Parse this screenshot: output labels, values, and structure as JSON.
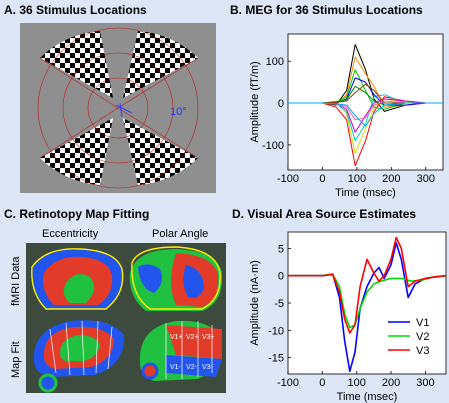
{
  "panels": {
    "a": {
      "title": "A. 36 Stimulus Locations",
      "degree_label": "10°"
    },
    "b": {
      "title": "B. MEG for 36 Stimulus Locations"
    },
    "c": {
      "title": "C. Retinotopy Map Fitting",
      "col_eccentricity": "Eccentricity",
      "col_polar": "Polar Angle",
      "row_fmri": "fMRI Data",
      "row_mapfit": "Map Fit",
      "area_labels": [
        "V1+",
        "V2+",
        "V3+",
        "V1-",
        "V2-",
        "V3-"
      ]
    },
    "d": {
      "title": "D. Visual Area Source Estimates"
    }
  },
  "chart_data": [
    {
      "type": "line",
      "title": "",
      "xlabel": "Time (msec)",
      "ylabel": "Amplitude (fT/m)",
      "xlim": [
        -100,
        350
      ],
      "ylim": [
        -160,
        165
      ],
      "xticks": [
        -100,
        0,
        100,
        200,
        300
      ],
      "yticks": [
        -100,
        0,
        100
      ],
      "grid": false,
      "legend": "none",
      "colors": [
        "#000000",
        "#ff0000",
        "#ff8800",
        "#dddd00",
        "#00cc00",
        "#00cccc",
        "#0000ff",
        "#cc00cc",
        "#008800",
        "#ff66aa",
        "#884400",
        "#00aaff"
      ],
      "series": [
        {
          "x": [
            -100,
            0,
            40,
            70,
            95,
            125,
            150,
            180,
            240,
            300,
            350
          ],
          "values": [
            0,
            0,
            -5,
            30,
            140,
            80,
            10,
            -20,
            -5,
            0,
            0
          ]
        },
        {
          "x": [
            -100,
            0,
            40,
            70,
            95,
            125,
            150,
            180,
            240,
            300,
            350
          ],
          "values": [
            0,
            0,
            -10,
            -40,
            -150,
            -90,
            -20,
            15,
            5,
            0,
            0
          ]
        },
        {
          "x": [
            -100,
            0,
            40,
            70,
            95,
            125,
            150,
            180,
            240,
            300,
            350
          ],
          "values": [
            0,
            0,
            -3,
            20,
            110,
            70,
            40,
            -10,
            -5,
            0,
            0
          ]
        },
        {
          "x": [
            -100,
            0,
            40,
            70,
            95,
            125,
            150,
            180,
            240,
            300,
            350
          ],
          "values": [
            0,
            0,
            5,
            -25,
            -120,
            -60,
            -10,
            10,
            2,
            0,
            0
          ]
        },
        {
          "x": [
            -100,
            0,
            40,
            70,
            95,
            125,
            150,
            180,
            240,
            300,
            350
          ],
          "values": [
            0,
            0,
            2,
            15,
            80,
            30,
            -10,
            -15,
            0,
            0,
            0
          ]
        },
        {
          "x": [
            -100,
            0,
            40,
            70,
            95,
            125,
            150,
            180,
            240,
            300,
            350
          ],
          "values": [
            0,
            0,
            -2,
            -20,
            -90,
            -50,
            15,
            20,
            0,
            0,
            0
          ]
        },
        {
          "x": [
            -100,
            0,
            40,
            70,
            95,
            125,
            150,
            180,
            240,
            300,
            350
          ],
          "values": [
            0,
            0,
            0,
            10,
            60,
            50,
            20,
            -5,
            -5,
            0,
            0
          ]
        },
        {
          "x": [
            -100,
            0,
            40,
            70,
            95,
            125,
            150,
            180,
            240,
            300,
            350
          ],
          "values": [
            0,
            0,
            0,
            -15,
            -70,
            -30,
            0,
            10,
            5,
            0,
            0
          ]
        },
        {
          "x": [
            -100,
            0,
            40,
            70,
            95,
            125,
            150,
            180,
            240,
            300,
            350
          ],
          "values": [
            0,
            0,
            3,
            8,
            40,
            25,
            5,
            -5,
            0,
            0,
            0
          ]
        },
        {
          "x": [
            -100,
            0,
            40,
            70,
            95,
            125,
            150,
            180,
            240,
            300,
            350
          ],
          "values": [
            0,
            0,
            -3,
            -8,
            -40,
            -35,
            -5,
            5,
            0,
            0,
            0
          ]
        },
        {
          "x": [
            -100,
            0,
            40,
            70,
            95,
            125,
            150,
            180,
            240,
            300,
            350
          ],
          "values": [
            0,
            0,
            2,
            5,
            25,
            45,
            30,
            0,
            0,
            0,
            0
          ]
        },
        {
          "x": [
            -100,
            0,
            40,
            70,
            95,
            125,
            150,
            180,
            240,
            300,
            350
          ],
          "values": [
            0,
            0,
            -2,
            -5,
            -30,
            -55,
            -25,
            -5,
            0,
            0,
            0
          ]
        }
      ]
    },
    {
      "type": "line",
      "title": "",
      "xlabel": "Time (msec)",
      "ylabel": "Amplitude (nA·m)",
      "xlim": [
        -100,
        360
      ],
      "ylim": [
        -18,
        8
      ],
      "xticks": [
        -100,
        0,
        100,
        200,
        300
      ],
      "yticks": [
        -15,
        -10,
        -5,
        0,
        5
      ],
      "grid": false,
      "legend": "bottom-right",
      "series": [
        {
          "name": "V1",
          "color": "#0000ff",
          "x": [
            -100,
            0,
            30,
            50,
            65,
            80,
            95,
            110,
            130,
            150,
            165,
            180,
            200,
            215,
            230,
            250,
            270,
            300,
            330,
            360
          ],
          "values": [
            0,
            0,
            0.3,
            -4,
            -12,
            -17.5,
            -14,
            -6,
            -2,
            0.5,
            1.5,
            -0.5,
            2,
            6,
            3,
            -4,
            -1.5,
            -0.5,
            -0.2,
            0
          ]
        },
        {
          "name": "V2",
          "color": "#00dd00",
          "x": [
            -100,
            0,
            30,
            50,
            65,
            80,
            95,
            110,
            130,
            150,
            170,
            200,
            230,
            260,
            290,
            320,
            360
          ],
          "values": [
            0,
            0,
            0.3,
            -2,
            -7,
            -9.5,
            -9,
            -6,
            -3,
            -1.5,
            -1,
            -0.5,
            -0.5,
            -1,
            -0.8,
            -0.3,
            0
          ]
        },
        {
          "name": "V3",
          "color": "#ff0000",
          "x": [
            -100,
            0,
            30,
            50,
            65,
            80,
            95,
            110,
            130,
            150,
            165,
            180,
            200,
            215,
            230,
            250,
            270,
            300,
            330,
            360
          ],
          "values": [
            0,
            0,
            0.2,
            -3,
            -8,
            -10.5,
            -9,
            -2,
            3,
            0.5,
            -1,
            0,
            3,
            7,
            5,
            -2,
            -1,
            -0.5,
            -0.2,
            0
          ]
        }
      ]
    }
  ]
}
